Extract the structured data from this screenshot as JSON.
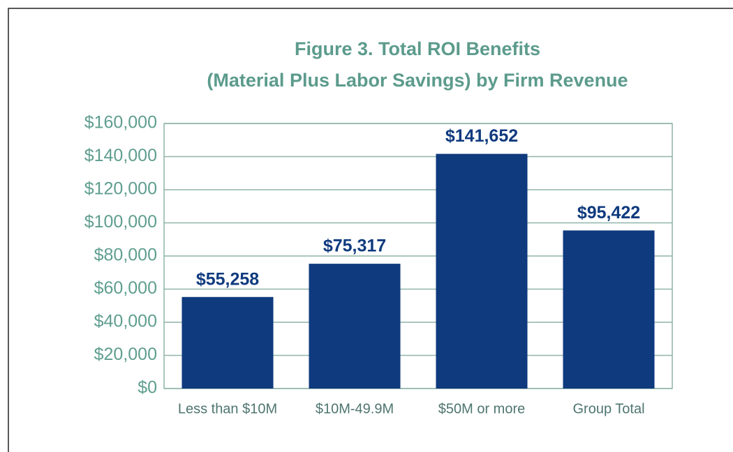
{
  "chart_data": {
    "type": "bar",
    "title": [
      "Figure 3. Total ROI Benefits",
      "(Material Plus Labor Savings) by Firm Revenue"
    ],
    "categories": [
      "Less than $10M",
      "$10M-49.9M",
      "$50M or more",
      "Group Total"
    ],
    "values": [
      55258,
      75317,
      141652,
      95422
    ],
    "value_labels": [
      "$55,258",
      "$75,317",
      "$141,652",
      "$95,422"
    ],
    "color": "#0f3a7e",
    "ylim": [
      0,
      160000
    ],
    "yticks": [
      {
        "value": 0,
        "label": "$0"
      },
      {
        "value": 20000,
        "label": "$20,000"
      },
      {
        "value": 40000,
        "label": "$40,000"
      },
      {
        "value": 60000,
        "label": "$60,000"
      },
      {
        "value": 80000,
        "label": "$80,000"
      },
      {
        "value": 100000,
        "label": "$100,000"
      },
      {
        "value": 120000,
        "label": "$120,000"
      },
      {
        "value": 140000,
        "label": "$140,000"
      },
      {
        "value": 160000,
        "label": "$160,000"
      }
    ],
    "grid": true
  }
}
